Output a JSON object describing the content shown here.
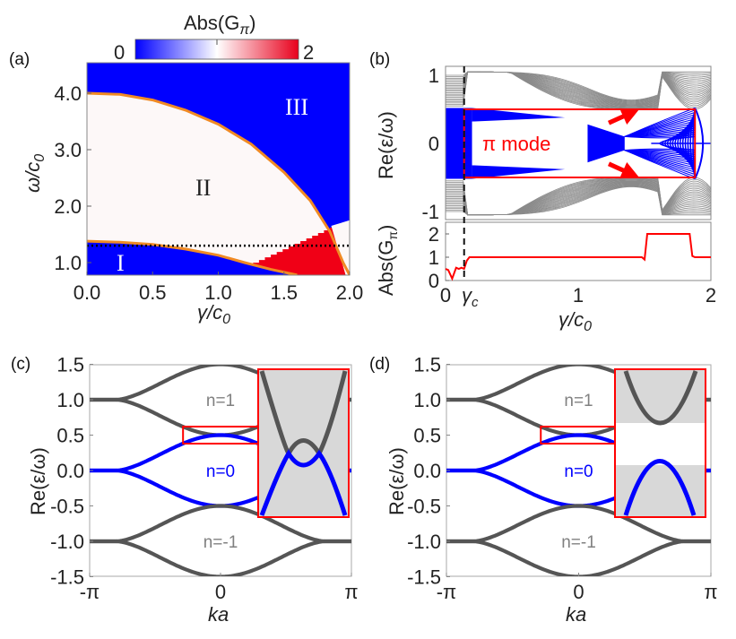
{
  "chart_data": [
    {
      "panel": "(a)",
      "type": "heatmap",
      "title": "",
      "xlabel": "γ/c0",
      "ylabel": "ω/c0",
      "xlim": [
        0.0,
        2.0
      ],
      "ylim": [
        0.78,
        4.55
      ],
      "xticks": [
        "0.0",
        "0.5",
        "1.0",
        "1.5",
        "2.0"
      ],
      "xtick_values": [
        0.0,
        0.5,
        1.0,
        1.5,
        2.0
      ],
      "yticks": [
        "1.0",
        "2.0",
        "3.0",
        "4.0"
      ],
      "ytick_values": [
        1.0,
        2.0,
        3.0,
        4.0
      ],
      "colorbar": {
        "label": "Abs(Gπ)",
        "min_label": "0",
        "max_label": "2",
        "range": [
          0,
          2
        ],
        "colors": [
          "#0000ff",
          "#ffffff",
          "#e8001c"
        ]
      },
      "regions": [
        {
          "label": "I",
          "value": 0,
          "color": "#0000ff",
          "x": 0.3,
          "y": 1.0
        },
        {
          "label": "II",
          "value": 1,
          "color": "#fdf8f8",
          "x": 0.9,
          "y": 2.3
        },
        {
          "label": "III",
          "value": 0,
          "color": "#0000ff",
          "x": 1.7,
          "y": 3.7
        },
        {
          "label": "",
          "value": 2,
          "color": "#f00016",
          "x": 1.65,
          "y": 1.2
        }
      ],
      "boundary_curves": [
        {
          "name": "upper-boundary",
          "color": "#f08a24",
          "x": [
            0.0,
            0.25,
            0.5,
            0.75,
            1.0,
            1.25,
            1.5,
            1.7,
            1.85,
            1.95,
            2.0
          ],
          "y": [
            4.0,
            3.98,
            3.88,
            3.7,
            3.45,
            3.1,
            2.6,
            2.1,
            1.55,
            1.0,
            0.78
          ]
        },
        {
          "name": "lower-boundary",
          "color": "#f08a24",
          "x": [
            0.0,
            0.25,
            0.5,
            0.75,
            1.0,
            1.2,
            1.4,
            1.6
          ],
          "y": [
            1.38,
            1.36,
            1.32,
            1.24,
            1.13,
            1.0,
            0.88,
            0.78
          ]
        }
      ],
      "dotted_line": {
        "y": 1.3,
        "color": "#000000"
      }
    },
    {
      "panel": "(b)",
      "type": "line",
      "subplots": [
        {
          "name": "band-structure",
          "ylabel": "Re(ε/ω)",
          "xlim": [
            0,
            2
          ],
          "ylim": [
            -1.1,
            1.1
          ],
          "yticks": [
            "-1",
            "0",
            "1"
          ],
          "ytick_values": [
            -1,
            0,
            1
          ],
          "series": [
            {
              "name": "n=±1 bands",
              "color": "#808080"
            },
            {
              "name": "n=0 bands",
              "color": "#0000ff"
            }
          ],
          "highlight_box": {
            "x": [
              0.14,
              1.88
            ],
            "y": [
              -0.5,
              0.5
            ],
            "color": "#ff0000"
          },
          "annotation": "π mode",
          "arrows": [
            {
              "from": [
                1.23,
                0.3
              ],
              "to": [
                1.4,
                0.45
              ],
              "color": "#ff0000"
            },
            {
              "from": [
                1.23,
                -0.3
              ],
              "to": [
                1.4,
                -0.45
              ],
              "color": "#ff0000"
            }
          ]
        },
        {
          "name": "abs-g-pi",
          "ylabel": "Abs(Gπ)",
          "xlabel": "γ/c0",
          "xlim": [
            0,
            2
          ],
          "ylim": [
            0,
            2.4
          ],
          "yticks": [
            "0",
            "1",
            "2"
          ],
          "ytick_values": [
            0,
            1,
            2
          ],
          "xticks": [
            "0",
            "γc",
            "1",
            "2"
          ],
          "xtick_values": [
            0,
            0.14,
            1,
            2
          ],
          "series": [
            {
              "name": "Abs(Gπ)",
              "color": "#ff0000",
              "x": [
                0.0,
                0.02,
                0.05,
                0.08,
                0.1,
                0.12,
                0.14,
                0.16,
                0.18,
                1.0,
                1.45,
                1.48,
                1.5,
                1.52,
                1.8,
                1.84,
                1.86,
                1.88,
                2.0
              ],
              "y": [
                0.5,
                0.45,
                0.08,
                0.55,
                0.5,
                0.55,
                0.5,
                0.85,
                1.0,
                1.0,
                1.0,
                1.0,
                0.9,
                2.0,
                2.0,
                2.0,
                1.05,
                1.0,
                1.0
              ]
            }
          ]
        }
      ],
      "vline": {
        "x": 0.14,
        "label": "γc",
        "style": "dashed",
        "color": "#000000"
      }
    },
    {
      "panel": "(c)",
      "type": "line",
      "xlabel": "ka",
      "ylabel": "Re(ε/ω)",
      "xlim": [
        -3.14159,
        3.14159
      ],
      "ylim": [
        -1.5,
        1.5
      ],
      "xticks": [
        "-π",
        "0",
        "π"
      ],
      "xtick_values": [
        -3.14159,
        0,
        3.14159
      ],
      "yticks": [
        "1.5",
        "1.0",
        "0.5",
        "0.0",
        "-0.5",
        "-1.0",
        "-1.5"
      ],
      "ytick_values": [
        1.5,
        1.0,
        0.5,
        0.0,
        -0.5,
        -1.0,
        -1.5
      ],
      "series": [
        {
          "name": "n=1",
          "color": "#555555",
          "offset": 1.0
        },
        {
          "name": "n=0",
          "color": "#0000ff",
          "offset": 0.0
        },
        {
          "name": "n=-1",
          "color": "#555555",
          "offset": -1.0
        }
      ],
      "band_labels": [
        {
          "text": "n=1",
          "color": "#808080",
          "x": 0.0,
          "y": 1.0
        },
        {
          "text": "n=0",
          "color": "#0000ff",
          "x": 0.0,
          "y": 0.0
        },
        {
          "text": "n=-1",
          "color": "#808080",
          "x": 0.0,
          "y": -1.0
        }
      ],
      "zoom_box": {
        "x": [
          -0.9,
          1.0
        ],
        "y": [
          0.38,
          0.62
        ],
        "color": "#ff0000"
      },
      "inset": {
        "type": "band-crossing",
        "gap": false,
        "background": "#d8d8d8"
      }
    },
    {
      "panel": "(d)",
      "type": "line",
      "xlabel": "ka",
      "ylabel": "Re(ε/ω)",
      "xlim": [
        -3.14159,
        3.14159
      ],
      "ylim": [
        -1.5,
        1.5
      ],
      "xticks": [
        "-π",
        "0",
        "π"
      ],
      "xtick_values": [
        -3.14159,
        0,
        3.14159
      ],
      "yticks": [
        "1.5",
        "1.0",
        "0.5",
        "0.0",
        "-0.5",
        "-1.0",
        "-1.5"
      ],
      "ytick_values": [
        1.5,
        1.0,
        0.5,
        0.0,
        -0.5,
        -1.0,
        -1.5
      ],
      "series": [
        {
          "name": "n=1",
          "color": "#555555",
          "offset": 1.0
        },
        {
          "name": "n=0",
          "color": "#0000ff",
          "offset": 0.0
        },
        {
          "name": "n=-1",
          "color": "#555555",
          "offset": -1.0
        }
      ],
      "band_labels": [
        {
          "text": "n=1",
          "color": "#808080",
          "x": 0.0,
          "y": 1.0
        },
        {
          "text": "n=0",
          "color": "#0000ff",
          "x": 0.0,
          "y": 0.0
        },
        {
          "text": "n=-1",
          "color": "#808080",
          "x": 0.0,
          "y": -1.0
        }
      ],
      "zoom_box": {
        "x": [
          -0.9,
          1.0
        ],
        "y": [
          0.38,
          0.62
        ],
        "color": "#ff0000"
      },
      "inset": {
        "type": "band-gap",
        "gap": true,
        "background": "#d8d8d8"
      }
    }
  ],
  "labels": {
    "panel_a": "(a)",
    "panel_b": "(b)",
    "panel_c": "(c)",
    "panel_d": "(d)",
    "colorbar_title": "Abs(G",
    "colorbar_sub": "π",
    "colorbar_close": ")",
    "colorbar_min": "0",
    "colorbar_max": "2",
    "a_ylabel_main": "ω/c",
    "a_ylabel_sub": "0",
    "a_xlabel_main": "γ/c",
    "a_xlabel_sub": "0",
    "region_I": "I",
    "region_II": "II",
    "region_III": "III",
    "b_ylabel_top": "Re(ε/ω)",
    "b_ylabel_bottom": "Abs(G",
    "b_ylabel_bottom_sub": "π",
    "b_ylabel_bottom_close": ")",
    "b_annotation": "π mode",
    "b_xlabel_main": "γ/c",
    "b_xlabel_sub": "0",
    "b_gamma_c": "γ",
    "b_gamma_c_sub": "c",
    "cd_ylabel": "Re(ε/ω)",
    "cd_xlabel": "ka"
  }
}
